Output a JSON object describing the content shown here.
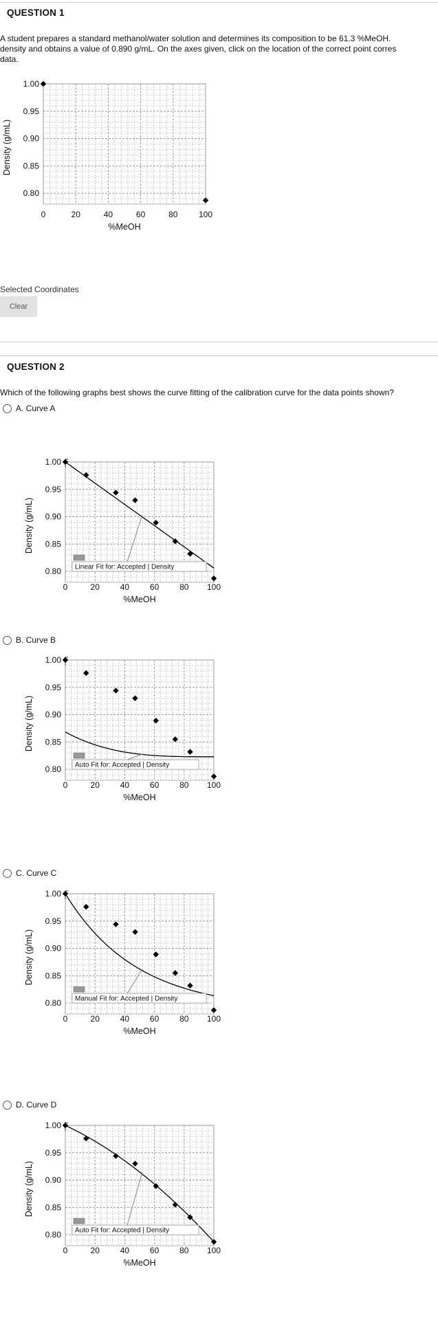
{
  "q1": {
    "title": "QUESTION 1",
    "text_line1": "A student prepares a standard methanol/water solution and determines its composition to be 61.3 %MeOH.",
    "text_line2": "density and obtains a value of 0.890 g/mL. On the axes given, click on the location of the correct point corres",
    "text_line3": "data.",
    "selected_label": "Selected Coordinates",
    "clear_label": "Clear"
  },
  "q2": {
    "title": "QUESTION 2",
    "text": "Which of the following graphs best shows the curve fitting of the calibration curve for the data points shown?",
    "options": [
      {
        "label": "A. Curve A",
        "fit_label": "Linear Fit for: Accepted | Density"
      },
      {
        "label": "B. Curve B",
        "fit_label": "Auto Fit for: Accepted | Density"
      },
      {
        "label": "C. Curve C",
        "fit_label": "Manual Fit for: Accepted | Density"
      },
      {
        "label": "D. Curve D",
        "fit_label": "Auto Fit for: Accepted | Density"
      }
    ]
  },
  "chart_data": [
    {
      "type": "scatter",
      "ylabel": "Density (g/mL)",
      "xlabel": "%MeOH",
      "xlim": [
        0,
        100
      ],
      "ylim": [
        0.78,
        1.0
      ],
      "xticks": [
        0,
        20,
        40,
        60,
        80,
        100
      ],
      "yticks": [
        "0.80",
        "0.85",
        "0.90",
        "0.95",
        "1.00"
      ],
      "points": [
        [
          0,
          1.0
        ],
        [
          100,
          0.787
        ]
      ],
      "fit": "none",
      "grid": true
    },
    {
      "type": "scatter",
      "ylabel": "Density (g/mL)",
      "xlabel": "%MeOH",
      "xlim": [
        0,
        100
      ],
      "ylim": [
        0.78,
        1.0
      ],
      "xticks": [
        0,
        20,
        40,
        60,
        80,
        100
      ],
      "yticks": [
        "0.80",
        "0.85",
        "0.90",
        "0.95",
        "1.00"
      ],
      "points": [
        [
          0,
          1.0
        ],
        [
          14,
          0.976
        ],
        [
          34,
          0.944
        ],
        [
          47,
          0.93
        ],
        [
          61,
          0.889
        ],
        [
          74,
          0.855
        ],
        [
          84,
          0.832
        ],
        [
          100,
          0.787
        ]
      ],
      "fit": "linear",
      "grid": true
    },
    {
      "type": "scatter",
      "ylabel": "Density (g/mL)",
      "xlabel": "%MeOH",
      "xlim": [
        0,
        100
      ],
      "ylim": [
        0.78,
        1.0
      ],
      "xticks": [
        0,
        20,
        40,
        60,
        80,
        100
      ],
      "yticks": [
        "0.80",
        "0.85",
        "0.90",
        "0.95",
        "1.00"
      ],
      "points": [
        [
          0,
          1.0
        ],
        [
          14,
          0.976
        ],
        [
          34,
          0.944
        ],
        [
          47,
          0.93
        ],
        [
          61,
          0.889
        ],
        [
          74,
          0.855
        ],
        [
          84,
          0.832
        ],
        [
          100,
          0.787
        ]
      ],
      "fit": "curve-b",
      "grid": true
    },
    {
      "type": "scatter",
      "ylabel": "Density (g/mL)",
      "xlabel": "%MeOH",
      "xlim": [
        0,
        100
      ],
      "ylim": [
        0.78,
        1.0
      ],
      "xticks": [
        0,
        20,
        40,
        60,
        80,
        100
      ],
      "yticks": [
        "0.80",
        "0.85",
        "0.90",
        "0.95",
        "1.00"
      ],
      "points": [
        [
          0,
          1.0
        ],
        [
          14,
          0.976
        ],
        [
          34,
          0.944
        ],
        [
          47,
          0.93
        ],
        [
          61,
          0.889
        ],
        [
          74,
          0.855
        ],
        [
          84,
          0.832
        ],
        [
          100,
          0.787
        ]
      ],
      "fit": "curve-c",
      "grid": true
    },
    {
      "type": "scatter",
      "ylabel": "Density (g/mL)",
      "xlabel": "%MeOH",
      "xlim": [
        0,
        100
      ],
      "ylim": [
        0.78,
        1.0
      ],
      "xticks": [
        0,
        20,
        40,
        60,
        80,
        100
      ],
      "yticks": [
        "0.80",
        "0.85",
        "0.90",
        "0.95",
        "1.00"
      ],
      "points": [
        [
          0,
          1.0
        ],
        [
          14,
          0.976
        ],
        [
          34,
          0.944
        ],
        [
          47,
          0.93
        ],
        [
          61,
          0.889
        ],
        [
          74,
          0.855
        ],
        [
          84,
          0.832
        ],
        [
          100,
          0.787
        ]
      ],
      "fit": "curve-d",
      "grid": true
    }
  ]
}
